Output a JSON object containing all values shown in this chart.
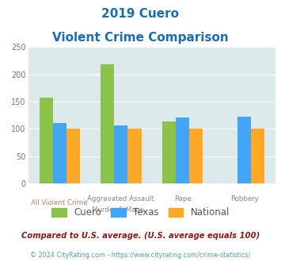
{
  "title_line1": "2019 Cuero",
  "title_line2": "Violent Crime Comparison",
  "title_color": "#1a6db5",
  "series": {
    "Cuero": [
      158,
      218,
      114,
      0
    ],
    "Texas": [
      110,
      106,
      121,
      123
    ],
    "National": [
      100,
      100,
      100,
      100
    ]
  },
  "colors": {
    "Cuero": "#8bc34a",
    "Texas": "#42a5f5",
    "National": "#ffa726"
  },
  "top_labels": [
    "",
    "Aggravated Assault",
    "Rape",
    "Robbery"
  ],
  "bottom_labels": [
    "All Violent Crime",
    "Murder & Mans...",
    "",
    ""
  ],
  "ylim": [
    0,
    250
  ],
  "yticks": [
    0,
    50,
    100,
    150,
    200,
    250
  ],
  "bar_width": 0.22,
  "bg_color": "#ddeaec",
  "grid_color": "#ffffff",
  "footnote1": "Compared to U.S. average. (U.S. average equals 100)",
  "footnote2": "© 2024 CityRating.com - https://www.cityrating.com/crime-statistics/",
  "footnote1_color": "#8b1a1a",
  "footnote2_color": "#5599bb"
}
